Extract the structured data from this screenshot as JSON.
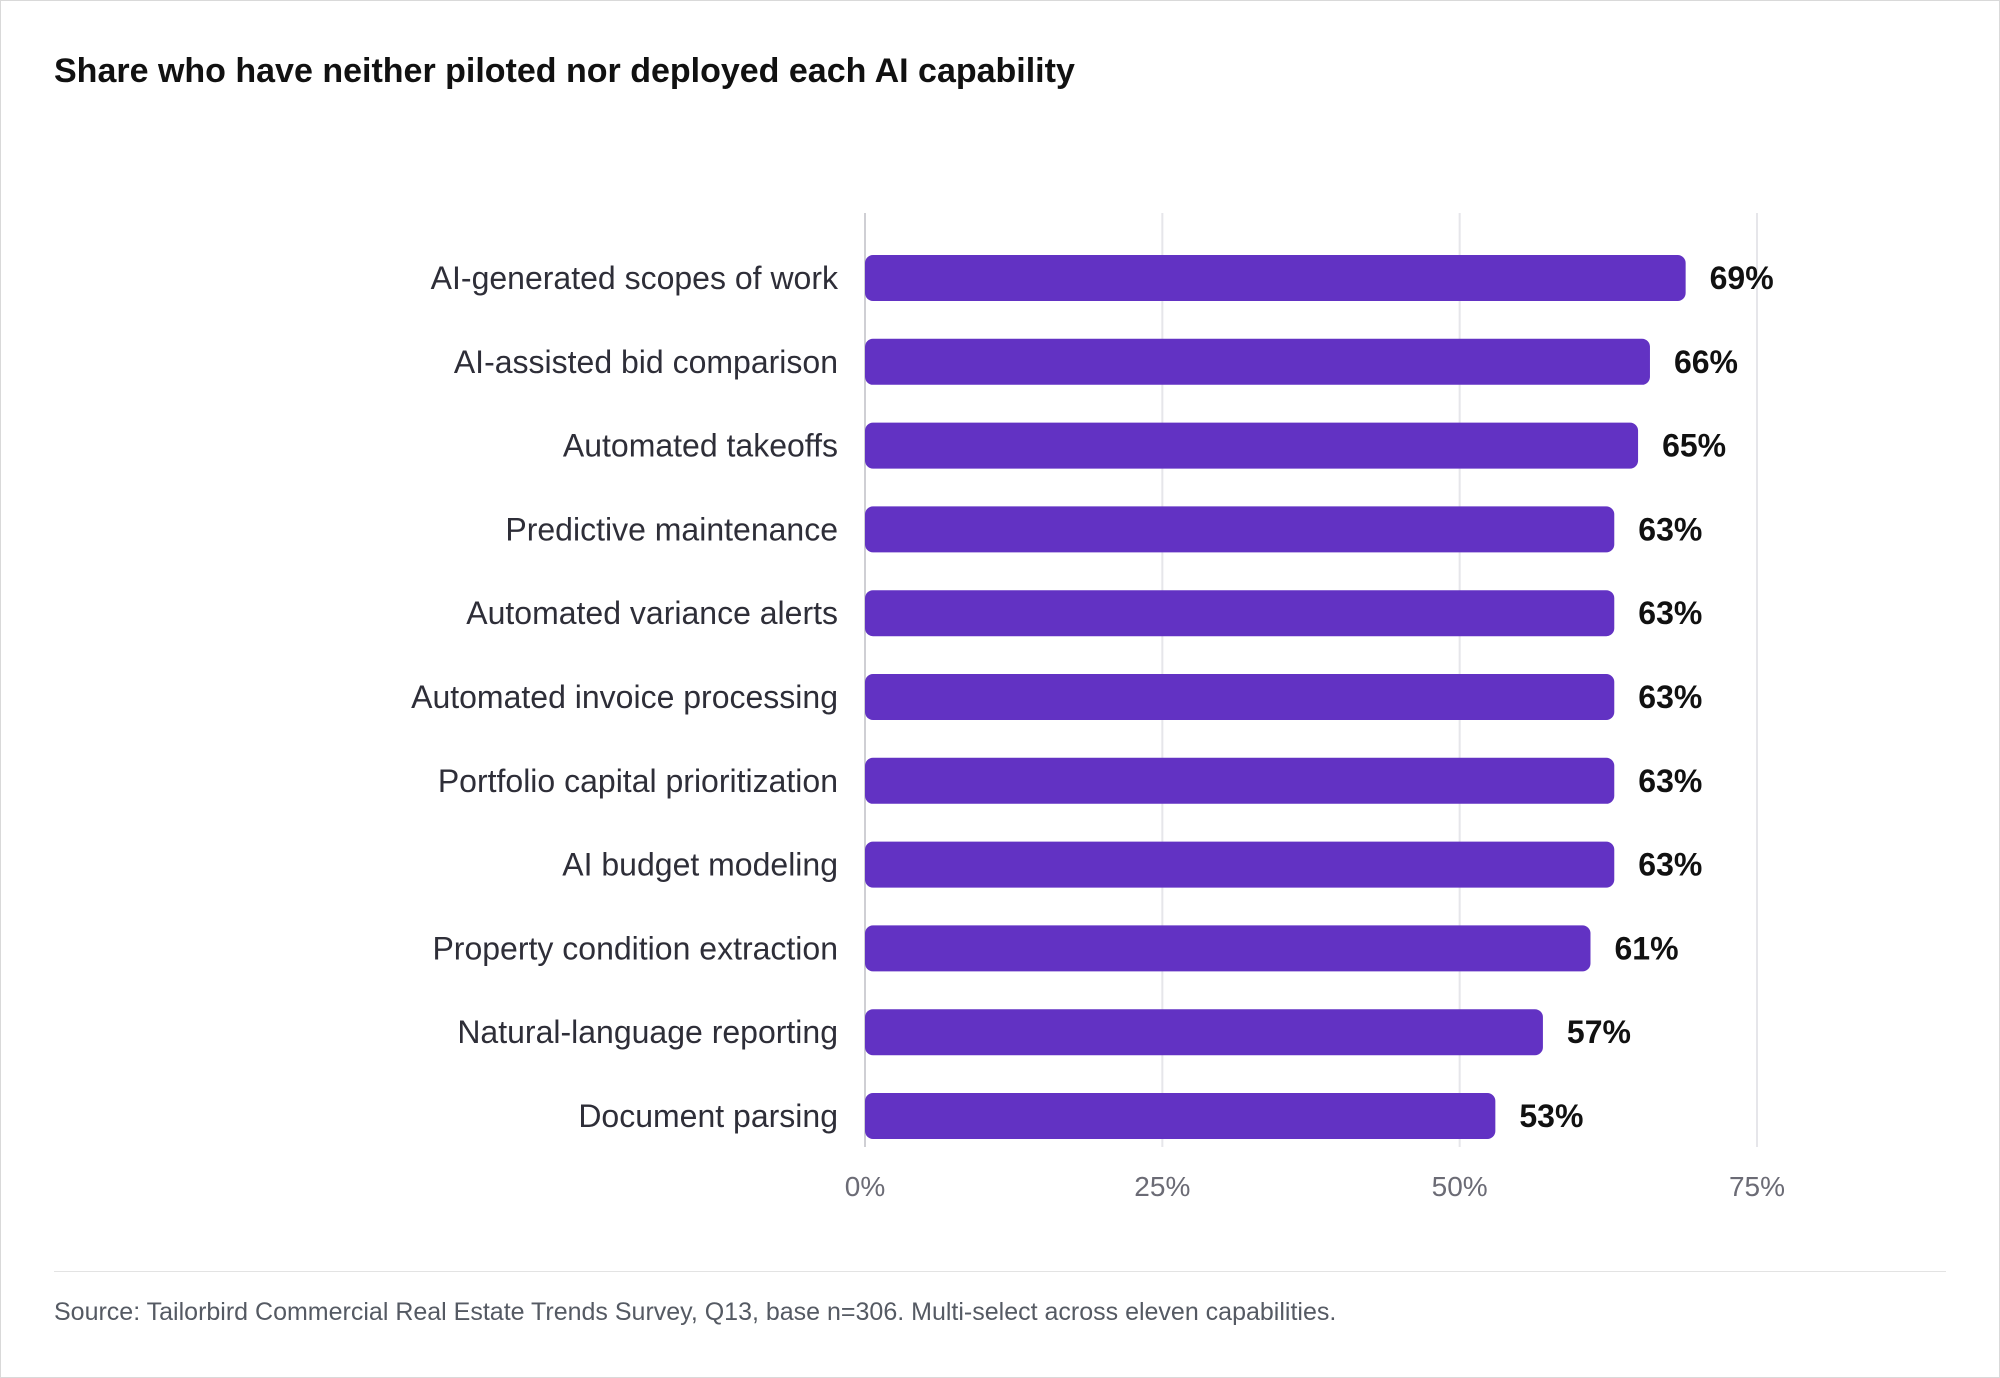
{
  "chart_data": {
    "type": "bar",
    "orientation": "horizontal",
    "title": "Share who have neither piloted nor deployed each AI capability",
    "categories": [
      "AI-generated scopes of work",
      "AI-assisted bid comparison",
      "Automated takeoffs",
      "Predictive maintenance",
      "Automated variance alerts",
      "Automated invoice processing",
      "Portfolio capital prioritization",
      "AI budget modeling",
      "Property condition extraction",
      "Natural-language reporting",
      "Document parsing"
    ],
    "values": [
      69,
      66,
      65,
      63,
      63,
      63,
      63,
      63,
      61,
      57,
      53
    ],
    "value_labels": [
      "69%",
      "66%",
      "65%",
      "63%",
      "63%",
      "63%",
      "63%",
      "63%",
      "61%",
      "57%",
      "53%"
    ],
    "xlim": [
      0,
      75
    ],
    "x_ticks": [
      0,
      25,
      50,
      75
    ],
    "x_tick_labels": [
      "0%",
      "25%",
      "50%",
      "75%"
    ],
    "grid": true,
    "bar_color": "#6232c3"
  },
  "footer": {
    "source": "Source: Tailorbird Commercial Real Estate Trends Survey, Q13, base n=306. Multi-select across eleven capabilities."
  }
}
